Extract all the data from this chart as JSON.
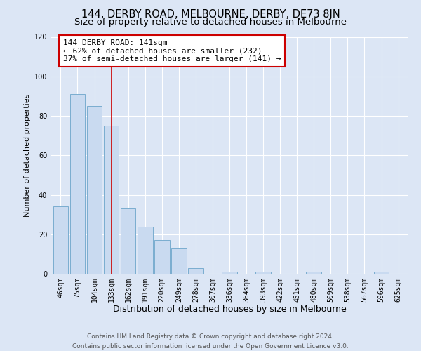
{
  "title": "144, DERBY ROAD, MELBOURNE, DERBY, DE73 8JN",
  "subtitle": "Size of property relative to detached houses in Melbourne",
  "xlabel": "Distribution of detached houses by size in Melbourne",
  "ylabel": "Number of detached properties",
  "categories": [
    "46sqm",
    "75sqm",
    "104sqm",
    "133sqm",
    "162sqm",
    "191sqm",
    "220sqm",
    "249sqm",
    "278sqm",
    "307sqm",
    "336sqm",
    "364sqm",
    "393sqm",
    "422sqm",
    "451sqm",
    "480sqm",
    "509sqm",
    "538sqm",
    "567sqm",
    "596sqm",
    "625sqm"
  ],
  "values": [
    34,
    91,
    85,
    75,
    33,
    24,
    17,
    13,
    3,
    0,
    1,
    0,
    1,
    0,
    0,
    1,
    0,
    0,
    0,
    1,
    0
  ],
  "bar_color": "#c9daf0",
  "bar_edge_color": "#7aadcf",
  "background_color": "#dce6f5",
  "grid_color": "#ffffff",
  "vline_color": "#cc0000",
  "annotation_box_text": "144 DERBY ROAD: 141sqm\n← 62% of detached houses are smaller (232)\n37% of semi-detached houses are larger (141) →",
  "annotation_box_color": "#ffffff",
  "annotation_box_edge_color": "#cc0000",
  "ylim": [
    0,
    120
  ],
  "yticks": [
    0,
    20,
    40,
    60,
    80,
    100,
    120
  ],
  "footer_line1": "Contains HM Land Registry data © Crown copyright and database right 2024.",
  "footer_line2": "Contains public sector information licensed under the Open Government Licence v3.0.",
  "title_fontsize": 10.5,
  "subtitle_fontsize": 9.5,
  "xlabel_fontsize": 9,
  "ylabel_fontsize": 8,
  "tick_fontsize": 7,
  "annotation_fontsize": 8,
  "footer_fontsize": 6.5
}
